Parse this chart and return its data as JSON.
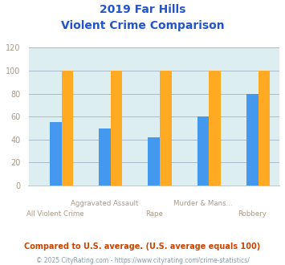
{
  "title_line1": "2019 Far Hills",
  "title_line2": "Violent Crime Comparison",
  "categories": [
    "All Violent Crime",
    "Aggravated Assault",
    "Rape",
    "Murder & Mans...",
    "Robbery"
  ],
  "cat_row": [
    1,
    0,
    1,
    0,
    1
  ],
  "series": {
    "Far Hills": [
      0,
      0,
      0,
      0,
      0
    ],
    "New Jersey": [
      55,
      50,
      42,
      60,
      80
    ],
    "National": [
      100,
      100,
      100,
      100,
      100
    ]
  },
  "colors": {
    "Far Hills": "#88cc33",
    "New Jersey": "#4499ee",
    "National": "#ffaa22"
  },
  "ylim": [
    0,
    120
  ],
  "yticks": [
    0,
    20,
    40,
    60,
    80,
    100,
    120
  ],
  "plot_bg_color": "#ddeef0",
  "title_color": "#2255cc",
  "grid_color": "#aabbcc",
  "footnote1": "Compared to U.S. average. (U.S. average equals 100)",
  "footnote2": "© 2025 CityRating.com - https://www.cityrating.com/crime-statistics/",
  "footnote1_color": "#cc4400",
  "footnote2_color": "#8899aa",
  "tick_label_color": "#aa9988",
  "legend_label_color": "#222222"
}
